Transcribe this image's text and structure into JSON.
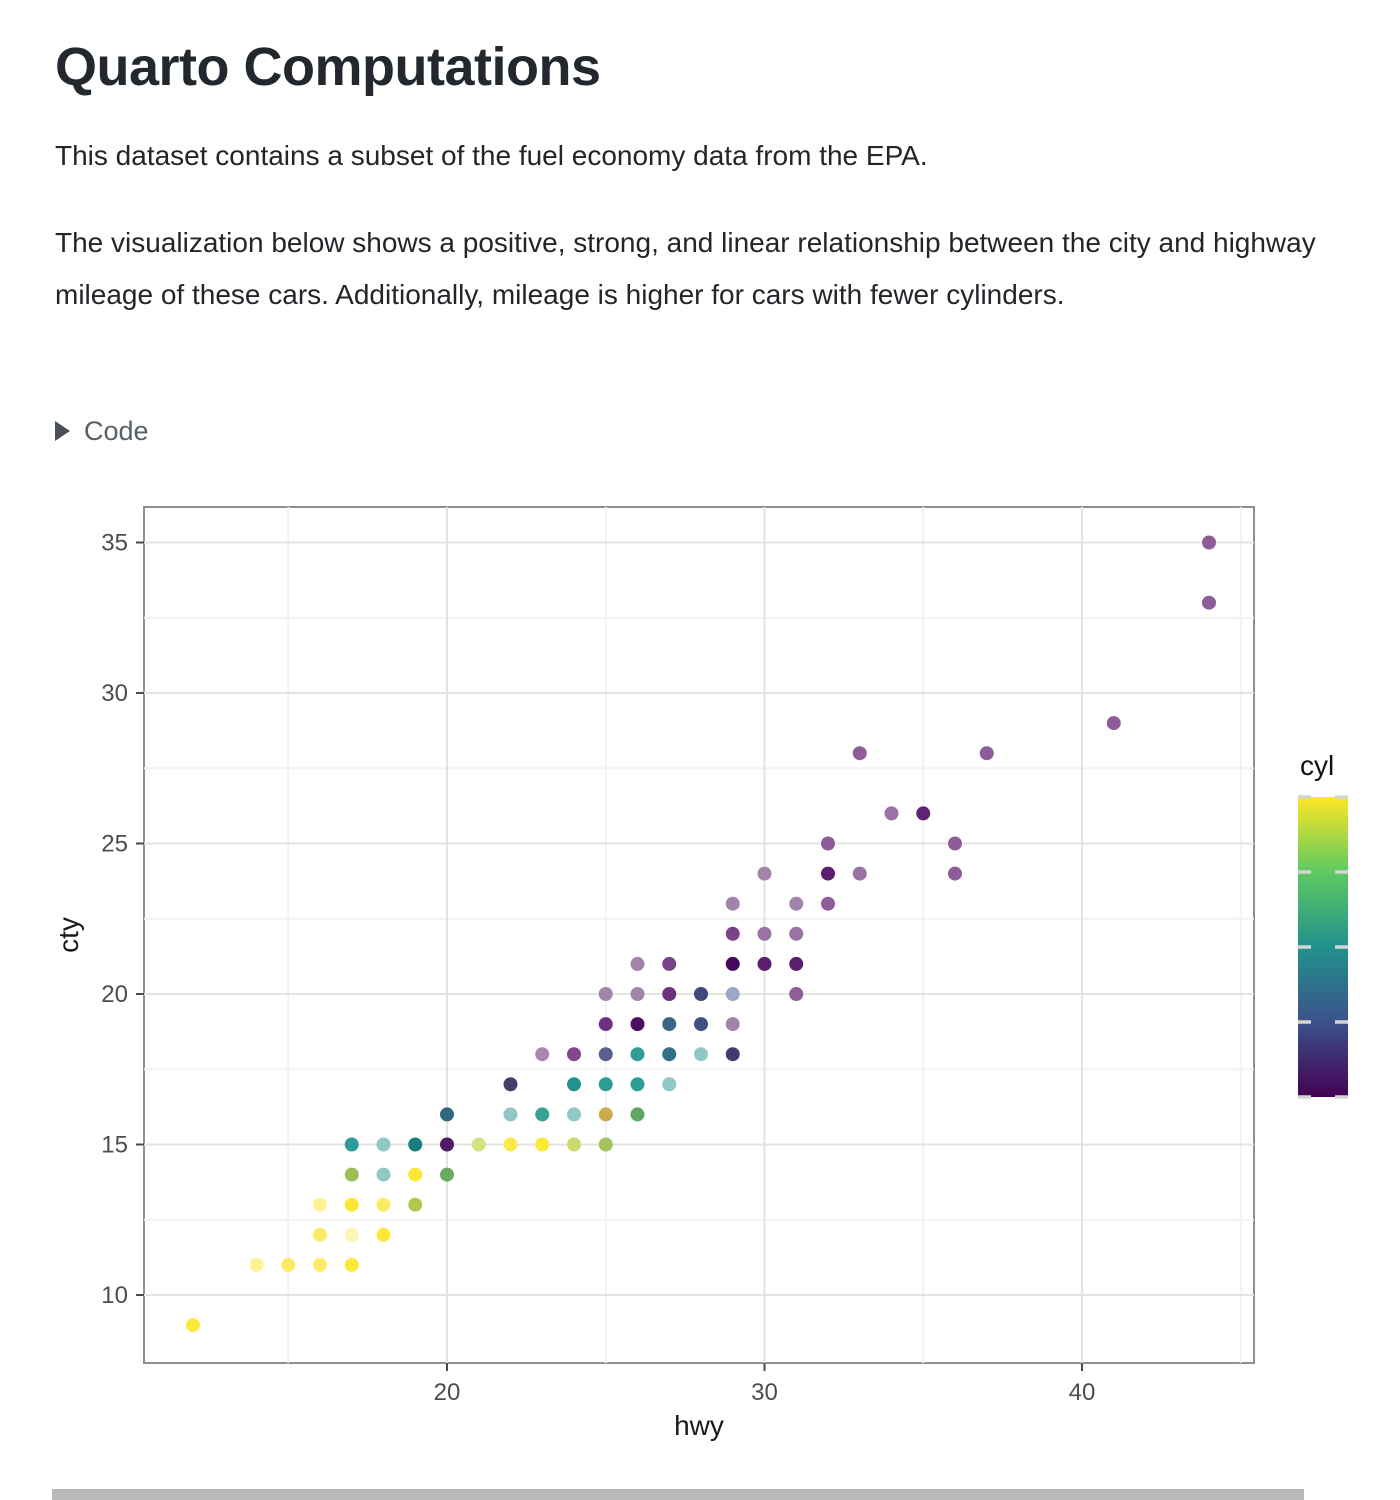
{
  "header": {
    "title": "Quarto Computations"
  },
  "content": {
    "paragraph1": "This dataset contains a subset of the fuel economy data from the EPA.",
    "paragraph2": "The visualization below shows a positive, strong, and linear relationship between the city and highway mileage of these cars. Additionally, mileage is higher for cars with fewer cylinders.",
    "code_toggle_label": "Code"
  },
  "chart_data": {
    "type": "scatter",
    "xlabel": "hwy",
    "ylabel": "cty",
    "xlim": [
      10.5,
      45.4
    ],
    "ylim": [
      7.7,
      36.2
    ],
    "x_major_ticks": [
      20,
      30,
      40
    ],
    "x_minor_gridlines": [
      15,
      25,
      35,
      45
    ],
    "y_major_ticks": [
      10,
      15,
      20,
      25,
      30,
      35
    ],
    "y_minor_gridlines": [
      12.5,
      17.5,
      22.5,
      27.5,
      32.5
    ],
    "grid": true,
    "legend": {
      "title": "cyl",
      "position": "right",
      "min": 4,
      "max": 8,
      "tick_values": [
        4,
        5,
        6,
        7,
        8
      ],
      "gradient": [
        {
          "value": 8,
          "color": "#FDE725"
        },
        {
          "value": 7,
          "color": "#5EC962"
        },
        {
          "value": 6,
          "color": "#21918C"
        },
        {
          "value": 5,
          "color": "#3B528B"
        },
        {
          "value": 4,
          "color": "#440154"
        }
      ]
    },
    "point_style": {
      "radius": 7,
      "note": "geom_point alpha 0.5; colors pre-blended over white"
    },
    "points": [
      {
        "hwy": 12,
        "cty": 9,
        "cyl": 8,
        "color": "#FCE93D"
      },
      {
        "hwy": 14,
        "cty": 11,
        "cyl": 8,
        "color": "#FEF294"
      },
      {
        "hwy": 15,
        "cty": 11,
        "cyl": 8,
        "color": "#FDEC63"
      },
      {
        "hwy": 16,
        "cty": 11,
        "cyl": 8,
        "color": "#FDEC63"
      },
      {
        "hwy": 17,
        "cty": 11,
        "cyl": 8,
        "color": "#FDE838"
      },
      {
        "hwy": 16,
        "cty": 12,
        "cyl": 8,
        "color": "#FDEC63"
      },
      {
        "hwy": 17,
        "cty": 12,
        "cyl": 8,
        "color": "#FEF6B0"
      },
      {
        "hwy": 18,
        "cty": 12,
        "cyl": 8,
        "color": "#FDE838"
      },
      {
        "hwy": 16,
        "cty": 13,
        "cyl": 8,
        "color": "#FEF294"
      },
      {
        "hwy": 17,
        "cty": 13,
        "cyl": 8,
        "color": "#FDE838"
      },
      {
        "hwy": 18,
        "cty": 13,
        "cyl": 8,
        "color": "#FDEC63"
      },
      {
        "hwy": 19,
        "cty": 13,
        "cyl": "6+8",
        "color": "#AFC84F"
      },
      {
        "hwy": 17,
        "cty": 14,
        "cyl": "6+8",
        "color": "#9CBE56"
      },
      {
        "hwy": 18,
        "cty": 14,
        "cyl": 6,
        "color": "#8FC8C4"
      },
      {
        "hwy": 19,
        "cty": 14,
        "cyl": 8,
        "color": "#FDE838"
      },
      {
        "hwy": 20,
        "cty": 14,
        "cyl": "6+8",
        "color": "#68AB61"
      },
      {
        "hwy": 17,
        "cty": 15,
        "cyl": 6,
        "color": "#2E9D98"
      },
      {
        "hwy": 18,
        "cty": 15,
        "cyl": 6,
        "color": "#8FC8C4"
      },
      {
        "hwy": 19,
        "cty": 15,
        "cyl": 6,
        "color": "#1A7F7C"
      },
      {
        "hwy": 20,
        "cty": 15,
        "cyl": 4,
        "color": "#511B66"
      },
      {
        "hwy": 21,
        "cty": 15,
        "cyl": 8,
        "color": "#D8E17F"
      },
      {
        "hwy": 22,
        "cty": 15,
        "cyl": 8,
        "color": "#FBE94C"
      },
      {
        "hwy": 23,
        "cty": 15,
        "cyl": 8,
        "color": "#FDE838"
      },
      {
        "hwy": 24,
        "cty": 15,
        "cyl": "6+8",
        "color": "#CDD96B"
      },
      {
        "hwy": 25,
        "cty": 15,
        "cyl": "6+8",
        "color": "#A3C45F"
      },
      {
        "hwy": 20,
        "cty": 16,
        "cyl": "4+6",
        "color": "#2F6880"
      },
      {
        "hwy": 22,
        "cty": 16,
        "cyl": 6,
        "color": "#8FC8C4"
      },
      {
        "hwy": 23,
        "cty": 16,
        "cyl": 6,
        "color": "#35A495"
      },
      {
        "hwy": 24,
        "cty": 16,
        "cyl": 6,
        "color": "#8FC8C4"
      },
      {
        "hwy": 25,
        "cty": 16,
        "cyl": "4+8",
        "color": "#CCAA4E"
      },
      {
        "hwy": 26,
        "cty": 16,
        "cyl": "6+8",
        "color": "#5FA763"
      },
      {
        "hwy": 22,
        "cty": 17,
        "cyl": "4+6",
        "color": "#473E6E"
      },
      {
        "hwy": 24,
        "cty": 17,
        "cyl": 6,
        "color": "#239391"
      },
      {
        "hwy": 25,
        "cty": 17,
        "cyl": 6,
        "color": "#2E9D98"
      },
      {
        "hwy": 26,
        "cty": 17,
        "cyl": 6,
        "color": "#2E9D98"
      },
      {
        "hwy": 27,
        "cty": 17,
        "cyl": 6,
        "color": "#8FC8C4"
      },
      {
        "hwy": 23,
        "cty": 18,
        "cyl": 4,
        "color": "#AC85B2"
      },
      {
        "hwy": 24,
        "cty": 18,
        "cyl": 4,
        "color": "#84468F"
      },
      {
        "hwy": 25,
        "cty": 18,
        "cyl": "4+6",
        "color": "#5A5E90"
      },
      {
        "hwy": 26,
        "cty": 18,
        "cyl": 6,
        "color": "#2E9D98"
      },
      {
        "hwy": 27,
        "cty": 18,
        "cyl": 6,
        "color": "#2F7287"
      },
      {
        "hwy": 28,
        "cty": 18,
        "cyl": 6,
        "color": "#8FC8C4"
      },
      {
        "hwy": 29,
        "cty": 18,
        "cyl": "4+6",
        "color": "#433A74"
      },
      {
        "hwy": 25,
        "cty": 19,
        "cyl": 4,
        "color": "#6E3180"
      },
      {
        "hwy": 26,
        "cty": 19,
        "cyl": 4,
        "color": "#4E0E60"
      },
      {
        "hwy": 27,
        "cty": 19,
        "cyl": "4+6",
        "color": "#3A6884"
      },
      {
        "hwy": 28,
        "cty": 19,
        "cyl": "4+5",
        "color": "#3E4F80"
      },
      {
        "hwy": 29,
        "cty": 19,
        "cyl": 4,
        "color": "#A284AB"
      },
      {
        "hwy": 25,
        "cty": 20,
        "cyl": 4,
        "color": "#A284AB"
      },
      {
        "hwy": 26,
        "cty": 20,
        "cyl": 4,
        "color": "#A284AB"
      },
      {
        "hwy": 27,
        "cty": 20,
        "cyl": 4,
        "color": "#6E3180"
      },
      {
        "hwy": 28,
        "cty": 20,
        "cyl": "4+5",
        "color": "#41477D"
      },
      {
        "hwy": 29,
        "cty": 20,
        "cyl": 5,
        "color": "#9AA7C7"
      },
      {
        "hwy": 31,
        "cty": 20,
        "cyl": 4,
        "color": "#8F5C9A"
      },
      {
        "hwy": 26,
        "cty": 21,
        "cyl": 4,
        "color": "#A284AB"
      },
      {
        "hwy": 27,
        "cty": 21,
        "cyl": 4,
        "color": "#7B4287"
      },
      {
        "hwy": 29,
        "cty": 21,
        "cyl": 4,
        "color": "#45075C"
      },
      {
        "hwy": 30,
        "cty": 21,
        "cyl": 4,
        "color": "#5D1D6E"
      },
      {
        "hwy": 31,
        "cty": 21,
        "cyl": 4,
        "color": "#5D1D6E"
      },
      {
        "hwy": 29,
        "cty": 22,
        "cyl": 4,
        "color": "#7B4287"
      },
      {
        "hwy": 30,
        "cty": 22,
        "cyl": 4,
        "color": "#9C72A5"
      },
      {
        "hwy": 31,
        "cty": 22,
        "cyl": 4,
        "color": "#9C72A5"
      },
      {
        "hwy": 29,
        "cty": 23,
        "cyl": 4,
        "color": "#A284AB"
      },
      {
        "hwy": 31,
        "cty": 23,
        "cyl": 4,
        "color": "#A284AB"
      },
      {
        "hwy": 32,
        "cty": 23,
        "cyl": 4,
        "color": "#8F5C9A"
      },
      {
        "hwy": 30,
        "cty": 24,
        "cyl": 4,
        "color": "#A284AB"
      },
      {
        "hwy": 32,
        "cty": 24,
        "cyl": 4,
        "color": "#5D1D6E"
      },
      {
        "hwy": 33,
        "cty": 24,
        "cyl": 4,
        "color": "#9C72A5"
      },
      {
        "hwy": 36,
        "cty": 24,
        "cyl": 4,
        "color": "#8F5C9A"
      },
      {
        "hwy": 32,
        "cty": 25,
        "cyl": 4,
        "color": "#8F5C9A"
      },
      {
        "hwy": 36,
        "cty": 25,
        "cyl": 4,
        "color": "#8F5C9A"
      },
      {
        "hwy": 34,
        "cty": 26,
        "cyl": 4,
        "color": "#9C72A5"
      },
      {
        "hwy": 35,
        "cty": 26,
        "cyl": 4,
        "color": "#5F2372"
      },
      {
        "hwy": 33,
        "cty": 28,
        "cyl": 4,
        "color": "#8F5C9A"
      },
      {
        "hwy": 37,
        "cty": 28,
        "cyl": 4,
        "color": "#8F5C9A"
      },
      {
        "hwy": 41,
        "cty": 29,
        "cyl": 4,
        "color": "#8F5C9A"
      },
      {
        "hwy": 44,
        "cty": 33,
        "cyl": 4,
        "color": "#8F5C9A"
      },
      {
        "hwy": 44,
        "cty": 35,
        "cyl": 4,
        "color": "#8F5C9A"
      }
    ],
    "style_colors": {
      "panel_border": "#8f8f8f",
      "grid_major": "#e3e3e3",
      "grid_minor": "#f2f2f2",
      "tick_label": "#4d4d4d",
      "axis_title": "#1a1a1a",
      "legend_tick": "#d4d4d4"
    }
  }
}
